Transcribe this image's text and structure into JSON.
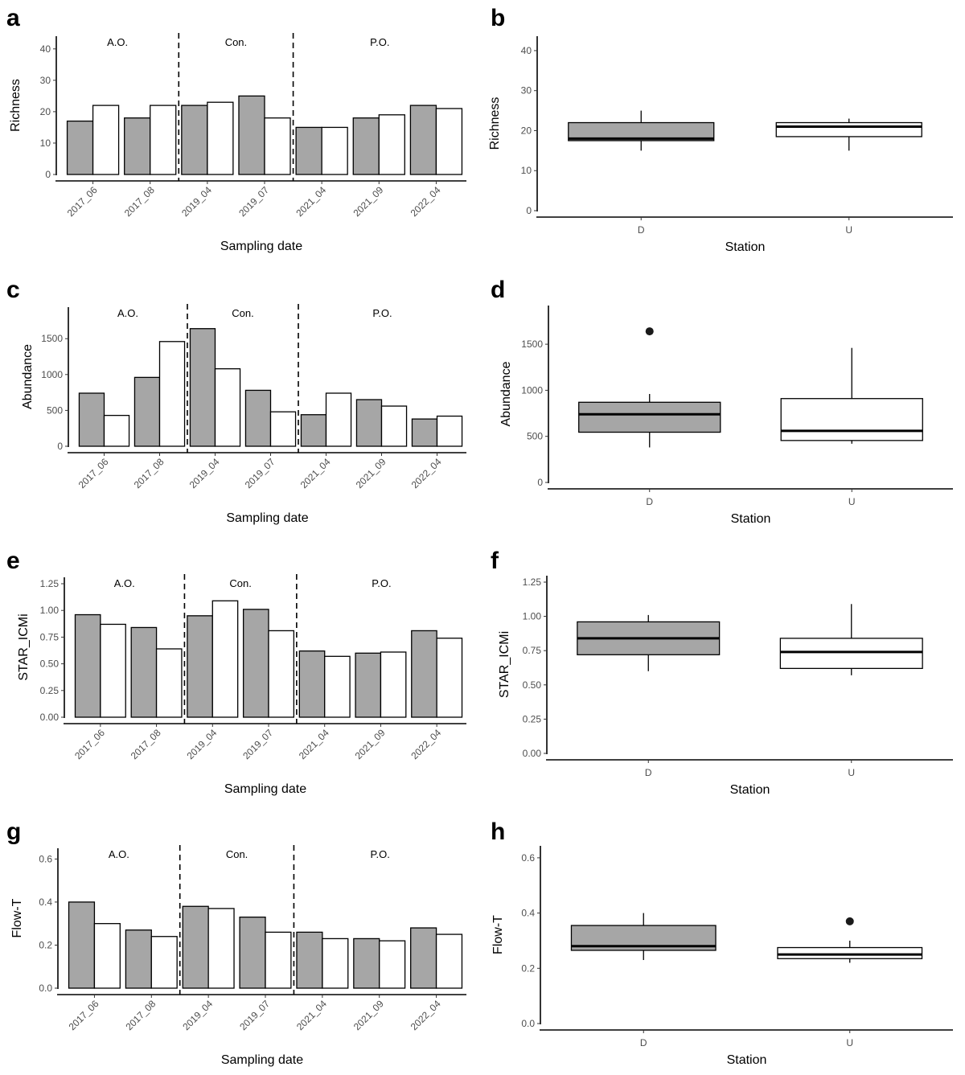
{
  "figure": {
    "colors": {
      "downstream": "#a6a6a6",
      "upstream": "#ffffff",
      "stroke": "#000000"
    }
  },
  "chart_data": [
    {
      "panel": "a",
      "type": "bar",
      "categories": [
        "2017_06",
        "2017_08",
        "2019_04",
        "2019_07",
        "2021_04",
        "2021_09",
        "2022_04"
      ],
      "series": [
        {
          "values": [
            17,
            18,
            22,
            25,
            15,
            18,
            22
          ]
        },
        {
          "values": [
            22,
            22,
            23,
            18,
            15,
            19,
            21
          ]
        }
      ],
      "periods": [
        "A.O.",
        "Con.",
        "P.O."
      ],
      "period_breaks_after": [
        "2017_08",
        "2019_07"
      ],
      "xlabel": "Sampling date",
      "ylabel": "Richness",
      "ylim": [
        0,
        42
      ],
      "yticks": [
        "0",
        "10",
        "20",
        "30",
        "40"
      ],
      "grid": false
    },
    {
      "panel": "b",
      "type": "boxplot",
      "categories": [
        "D",
        "U"
      ],
      "boxes": [
        {
          "min": 15,
          "q1": 17.5,
          "median": 18,
          "q3": 22,
          "max": 25,
          "outliers": []
        },
        {
          "min": 15,
          "q1": 18.5,
          "median": 21,
          "q3": 22,
          "max": 23,
          "outliers": []
        }
      ],
      "xlabel": "Station",
      "ylabel": "Richness",
      "ylim": [
        0,
        42
      ],
      "yticks": [
        "0",
        "10",
        "20",
        "30",
        "40"
      ],
      "grid": false
    },
    {
      "panel": "c",
      "type": "bar",
      "categories": [
        "2017_06",
        "2017_08",
        "2019_04",
        "2019_07",
        "2021_04",
        "2021_09",
        "2022_04"
      ],
      "series": [
        {
          "values": [
            740,
            960,
            1640,
            780,
            440,
            650,
            380
          ]
        },
        {
          "values": [
            430,
            1460,
            1080,
            480,
            740,
            560,
            420
          ]
        }
      ],
      "periods": [
        "A.O.",
        "Con.",
        "P.O."
      ],
      "period_breaks_after": [
        "2017_08",
        "2019_07"
      ],
      "xlabel": "Sampling date",
      "ylabel": "Abundance",
      "ylim": [
        0,
        1850
      ],
      "yticks": [
        "0",
        "500",
        "1000",
        "1500"
      ],
      "grid": false
    },
    {
      "panel": "d",
      "type": "boxplot",
      "categories": [
        "D",
        "U"
      ],
      "boxes": [
        {
          "min": 380,
          "q1": 545,
          "median": 740,
          "q3": 870,
          "max": 960,
          "outliers": [
            1640
          ]
        },
        {
          "min": 420,
          "q1": 455,
          "median": 560,
          "q3": 910,
          "max": 1460,
          "outliers": []
        }
      ],
      "xlabel": "Station",
      "ylabel": "Abundance",
      "ylim": [
        0,
        1850
      ],
      "yticks": [
        "0",
        "500",
        "1000",
        "1500"
      ],
      "grid": false
    },
    {
      "panel": "e",
      "type": "bar",
      "categories": [
        "2017_06",
        "2017_08",
        "2019_04",
        "2019_07",
        "2021_04",
        "2021_09",
        "2022_04"
      ],
      "series": [
        {
          "values": [
            0.96,
            0.84,
            0.95,
            1.01,
            0.62,
            0.6,
            0.81
          ]
        },
        {
          "values": [
            0.87,
            0.64,
            1.09,
            0.81,
            0.57,
            0.61,
            0.74
          ]
        }
      ],
      "periods": [
        "A.O.",
        "Con.",
        "P.O."
      ],
      "period_breaks_after": [
        "2017_08",
        "2019_07"
      ],
      "xlabel": "Sampling date",
      "ylabel": "STAR_ICMi",
      "ylim": [
        0,
        1.25
      ],
      "yticks": [
        "0.00",
        "0.25",
        "0.50",
        "0.75",
        "1.00",
        "1.25"
      ],
      "grid": false
    },
    {
      "panel": "f",
      "type": "boxplot",
      "categories": [
        "D",
        "U"
      ],
      "boxes": [
        {
          "min": 0.6,
          "q1": 0.72,
          "median": 0.84,
          "q3": 0.96,
          "max": 1.01,
          "outliers": []
        },
        {
          "min": 0.57,
          "q1": 0.62,
          "median": 0.74,
          "q3": 0.84,
          "max": 1.09,
          "outliers": []
        }
      ],
      "xlabel": "Station",
      "ylabel": "STAR_ICMi",
      "ylim": [
        0,
        1.25
      ],
      "yticks": [
        "0.00",
        "0.25",
        "0.50",
        "0.75",
        "1.00",
        "1.25"
      ],
      "grid": false
    },
    {
      "panel": "g",
      "type": "bar",
      "categories": [
        "2017_06",
        "2017_08",
        "2019_04",
        "2019_07",
        "2021_04",
        "2021_09",
        "2022_04"
      ],
      "series": [
        {
          "values": [
            0.4,
            0.27,
            0.38,
            0.33,
            0.26,
            0.23,
            0.28
          ]
        },
        {
          "values": [
            0.3,
            0.24,
            0.37,
            0.26,
            0.23,
            0.22,
            0.25
          ]
        }
      ],
      "periods": [
        "A.O.",
        "Con.",
        "P.O."
      ],
      "period_breaks_after": [
        "2017_08",
        "2019_07"
      ],
      "xlabel": "Sampling date",
      "ylabel": "Flow-T",
      "ylim": [
        0,
        0.62
      ],
      "yticks": [
        "0.0",
        "0.2",
        "0.4",
        "0.6"
      ],
      "grid": false
    },
    {
      "panel": "h",
      "type": "boxplot",
      "categories": [
        "D",
        "U"
      ],
      "boxes": [
        {
          "min": 0.23,
          "q1": 0.265,
          "median": 0.28,
          "q3": 0.355,
          "max": 0.4,
          "outliers": []
        },
        {
          "min": 0.22,
          "q1": 0.235,
          "median": 0.25,
          "q3": 0.275,
          "max": 0.3,
          "outliers": [
            0.37
          ]
        }
      ],
      "xlabel": "Station",
      "ylabel": "Flow-T",
      "ylim": [
        0,
        0.62
      ],
      "yticks": [
        "0.0",
        "0.2",
        "0.4",
        "0.6"
      ],
      "grid": false
    }
  ]
}
